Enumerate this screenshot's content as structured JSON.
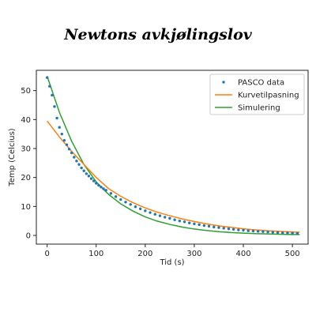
{
  "chart_data": {
    "type": "line",
    "title": "Newtons avkjølingslov",
    "xlabel": "Tid (s)",
    "ylabel": "Temp (Celcius)",
    "xlim": [
      -22,
      532
    ],
    "ylim": [
      -3,
      57
    ],
    "xticks": [
      0,
      100,
      200,
      300,
      400,
      500
    ],
    "yticks": [
      0,
      10,
      20,
      30,
      40,
      50
    ],
    "legend_position": "top-right",
    "series": [
      {
        "name": "PASCO data",
        "style": "points",
        "color": "#1f77b4",
        "x": [
          0,
          5,
          10,
          15,
          20,
          25,
          30,
          35,
          40,
          45,
          50,
          55,
          60,
          65,
          70,
          75,
          80,
          85,
          90,
          95,
          100,
          105,
          110,
          115,
          120,
          130,
          140,
          150,
          160,
          170,
          180,
          190,
          200,
          210,
          220,
          230,
          240,
          250,
          260,
          270,
          280,
          290,
          300,
          310,
          320,
          330,
          340,
          350,
          360,
          370,
          380,
          390,
          400,
          410,
          420,
          430,
          440,
          450,
          460,
          470,
          480,
          490,
          500,
          510
        ],
        "y": [
          54.5,
          51.5,
          48.4,
          44.5,
          40.5,
          37.3,
          35.0,
          32.8,
          31.3,
          29.8,
          28.5,
          27.0,
          25.7,
          24.5,
          23.3,
          22.3,
          21.3,
          20.5,
          19.6,
          18.8,
          18.0,
          17.3,
          16.7,
          16.1,
          15.6,
          14.5,
          13.4,
          12.4,
          11.5,
          10.7,
          9.9,
          9.2,
          8.5,
          7.9,
          7.3,
          6.8,
          6.3,
          5.9,
          5.4,
          5.0,
          4.7,
          4.3,
          4.0,
          3.7,
          3.4,
          3.2,
          2.9,
          2.7,
          2.5,
          2.3,
          2.1,
          1.9,
          1.8,
          1.6,
          1.5,
          1.4,
          1.3,
          1.2,
          1.1,
          1.0,
          0.9,
          0.9,
          0.8,
          0.7
        ]
      },
      {
        "name": "Kurvetilpasning",
        "style": "line",
        "color": "#ff7f0e",
        "x": [
          0,
          25,
          50,
          75,
          100,
          125,
          150,
          175,
          200,
          225,
          250,
          275,
          300,
          325,
          350,
          375,
          400,
          425,
          450,
          475,
          500,
          515
        ],
        "y": [
          39.5,
          34.0,
          29.0,
          24.5,
          20.0,
          16.2,
          13.5,
          11.3,
          9.5,
          8.0,
          6.8,
          5.7,
          4.8,
          4.0,
          3.3,
          2.8,
          2.3,
          1.9,
          1.6,
          1.4,
          1.2,
          1.1
        ]
      },
      {
        "name": "Simulering",
        "style": "line",
        "color": "#2ca02c",
        "x": [
          0,
          25,
          50,
          75,
          100,
          125,
          150,
          175,
          200,
          225,
          250,
          275,
          300,
          325,
          350,
          375,
          400,
          425,
          450,
          475,
          500,
          515
        ],
        "y": [
          55.0,
          42.5,
          32.5,
          24.5,
          18.5,
          14.2,
          10.9,
          8.4,
          6.4,
          4.9,
          3.8,
          2.9,
          2.2,
          1.7,
          1.3,
          1.0,
          0.8,
          0.6,
          0.5,
          0.4,
          0.3,
          0.3
        ]
      }
    ]
  }
}
